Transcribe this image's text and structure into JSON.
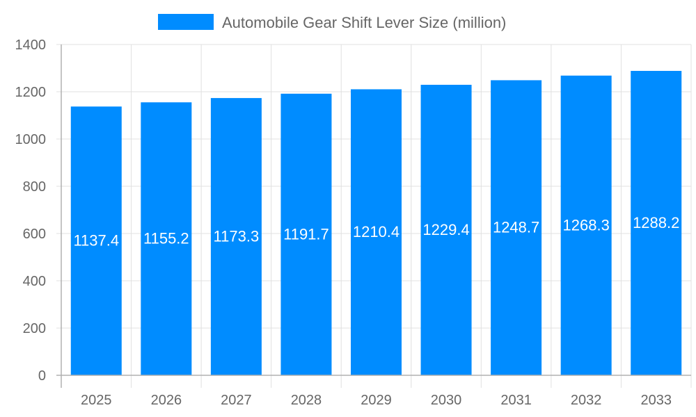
{
  "chart_data": {
    "type": "bar",
    "title": "",
    "xlabel": "",
    "ylabel": "",
    "categories": [
      "2025",
      "2026",
      "2027",
      "2028",
      "2029",
      "2030",
      "2031",
      "2032",
      "2033"
    ],
    "series": [
      {
        "name": "Automobile Gear Shift Lever Size (million)",
        "values": [
          1137.4,
          1155.2,
          1173.3,
          1191.7,
          1210.4,
          1229.4,
          1248.7,
          1268.3,
          1288.2
        ],
        "labels": [
          "1137.4",
          "1155.2",
          "1173.3",
          "1191.7",
          "1210.4",
          "1229.4",
          "1248.7",
          "1268.3",
          "1288.2"
        ]
      }
    ],
    "ylim": [
      0,
      1400
    ],
    "yticks": [
      "0",
      "200",
      "400",
      "600",
      "800",
      "1000",
      "1200",
      "1400"
    ],
    "grid": true,
    "legend_position": "top",
    "colors": {
      "bar": "#008cff",
      "grid": "#e0e0e0",
      "axis": "#b0b0b0",
      "text": "#666666",
      "data_label": "#ffffff"
    }
  }
}
